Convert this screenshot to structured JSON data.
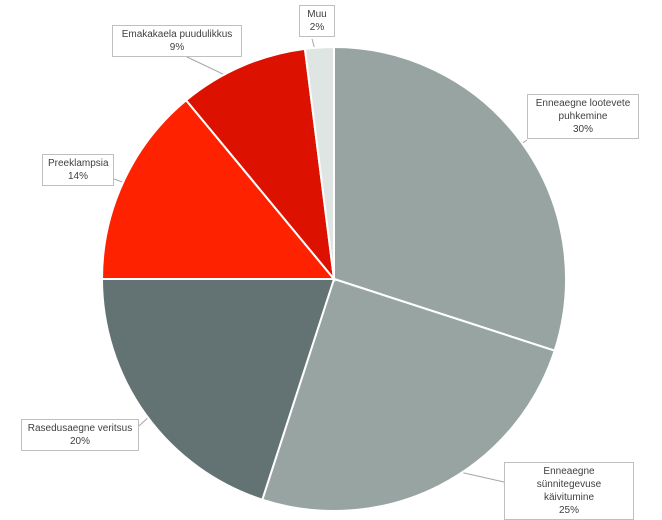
{
  "chart_data": {
    "type": "pie",
    "start_angle_deg": 0,
    "direction": "clockwise",
    "slices": [
      {
        "label": "Enneaegne lootevete\npuhkemine",
        "percent_label": "30%",
        "value": 30,
        "color": "#98a4a2"
      },
      {
        "label": "Enneaegne sünnitegevuse\nkäivitumine",
        "percent_label": "25%",
        "value": 25,
        "color": "#98a4a2"
      },
      {
        "label": "Rasedusaegne veritsus",
        "percent_label": "20%",
        "value": 20,
        "color": "#637272"
      },
      {
        "label": "Preeklampsia",
        "percent_label": "14%",
        "value": 14,
        "color": "#ff2200"
      },
      {
        "label": "Emakakaela puudulikkus",
        "percent_label": "9%",
        "value": 9,
        "color": "#dd1100"
      },
      {
        "label": "Muu",
        "percent_label": "2%",
        "value": 2,
        "color": "#dfe5e3"
      }
    ]
  }
}
